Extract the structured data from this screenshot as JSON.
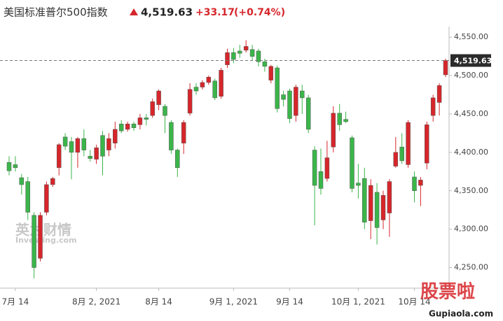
{
  "chart_data": {
    "type": "candlestick",
    "title": "美国标准普尔500指数",
    "last_price": {
      "value": 4519.63,
      "label": "4,519.63"
    },
    "change": "+33.17",
    "change_percent": "(+0.74%)",
    "up_color": "#d6262b",
    "down_color": "#3bb54a",
    "categories": [
      null,
      "7月 14",
      null,
      null,
      null,
      null,
      null,
      null,
      null,
      null,
      null,
      null,
      null,
      null,
      "8月 2, 2021",
      null,
      null,
      null,
      null,
      null,
      null,
      null,
      null,
      null,
      "8月 14",
      null,
      null,
      null,
      null,
      null,
      null,
      null,
      null,
      null,
      null,
      null,
      "9月 1, 2021",
      null,
      null,
      null,
      null,
      null,
      null,
      null,
      null,
      "9月 14",
      null,
      null,
      null,
      null,
      null,
      null,
      null,
      null,
      null,
      null,
      "10月 1, 2021",
      null,
      null,
      null,
      null,
      null,
      null,
      null,
      null,
      "10月 14",
      null,
      null,
      null,
      null,
      null
    ],
    "open": [
      4387,
      4384,
      4367,
      4362,
      4318,
      4262,
      4322,
      4358,
      4380,
      4420,
      4414,
      4400,
      4418,
      4395,
      4391,
      4422,
      4403,
      4412,
      4437,
      4430,
      4437,
      4436,
      4445,
      4448,
      4462,
      4460,
      4439,
      4403,
      4412,
      4451,
      4485,
      4485,
      4491,
      4493,
      4473,
      4514,
      4530,
      4532,
      4533,
      4534,
      4532,
      4518,
      4494,
      4510,
      4475,
      4480,
      4448,
      4480,
      4471,
      4403,
      4375,
      4366,
      4407,
      4451,
      4443,
      4419,
      4360,
      4366,
      4311,
      4348,
      4312,
      4321,
      4382,
      4407,
      4384,
      4368,
      4357,
      4386,
      4448,
      4465,
      4501
    ],
    "high": [
      4395,
      4395,
      4372,
      4368,
      4322,
      4322,
      4362,
      4368,
      4412,
      4425,
      4420,
      4420,
      4430,
      4403,
      4410,
      4428,
      4425,
      4440,
      4442,
      4440,
      4440,
      4450,
      4450,
      4470,
      4482,
      4463,
      4442,
      4405,
      4442,
      4490,
      4490,
      4494,
      4500,
      4496,
      4510,
      4535,
      4536,
      4540,
      4546,
      4540,
      4535,
      4522,
      4514,
      4513,
      4480,
      4483,
      4488,
      4488,
      4475,
      4408,
      4405,
      4415,
      4460,
      4463,
      4453,
      4422,
      4385,
      4380,
      4365,
      4360,
      4350,
      4365,
      4420,
      4425,
      4442,
      4375,
      4368,
      4440,
      4475,
      4490,
      4522
    ],
    "low": [
      4370,
      4375,
      4345,
      4312,
      4236,
      4258,
      4318,
      4355,
      4370,
      4403,
      4365,
      4380,
      4395,
      4388,
      4385,
      4370,
      4395,
      4405,
      4425,
      4427,
      4428,
      4430,
      4435,
      4445,
      4455,
      4425,
      4398,
      4368,
      4398,
      4448,
      4475,
      4482,
      4488,
      4468,
      4470,
      4510,
      4516,
      4523,
      4530,
      4520,
      4512,
      4505,
      4490,
      4452,
      4460,
      4438,
      4440,
      4450,
      4425,
      4305,
      4345,
      4362,
      4400,
      4428,
      4438,
      4348,
      4340,
      4300,
      4287,
      4280,
      4300,
      4290,
      4380,
      4385,
      4380,
      4335,
      4330,
      4378,
      4440,
      4448,
      4498
    ],
    "close": [
      4376,
      4380,
      4358,
      4322,
      4250,
      4318,
      4358,
      4366,
      4410,
      4408,
      4400,
      4418,
      4403,
      4392,
      4406,
      4395,
      4418,
      4430,
      4428,
      4437,
      4432,
      4445,
      4443,
      4466,
      4480,
      4448,
      4403,
      4380,
      4439,
      4482,
      4480,
      4491,
      4498,
      4471,
      4507,
      4530,
      4521,
      4529,
      4538,
      4525,
      4518,
      4512,
      4512,
      4457,
      4469,
      4444,
      4485,
      4471,
      4430,
      4357,
      4353,
      4393,
      4451,
      4436,
      4440,
      4353,
      4357,
      4309,
      4357,
      4302,
      4344,
      4362,
      4400,
      4389,
      4439,
      4350,
      4364,
      4436,
      4471,
      4487,
      4519.63
    ],
    "ylim": [
      4225,
      4562
    ],
    "yticks": [
      {
        "value": 4250,
        "label": "4,250.00"
      },
      {
        "value": 4300,
        "label": "4,300.00"
      },
      {
        "value": 4350,
        "label": "4,350.00"
      },
      {
        "value": 4400,
        "label": "4,400.00"
      },
      {
        "value": 4450,
        "label": "4,450.00"
      },
      {
        "value": 4500,
        "label": "4,500.00"
      },
      {
        "value": 4550,
        "label": "4,550.00"
      }
    ],
    "watermarks": [
      "英为财情",
      "Investing.com",
      "股票啦",
      "Gupiaola.com"
    ]
  }
}
